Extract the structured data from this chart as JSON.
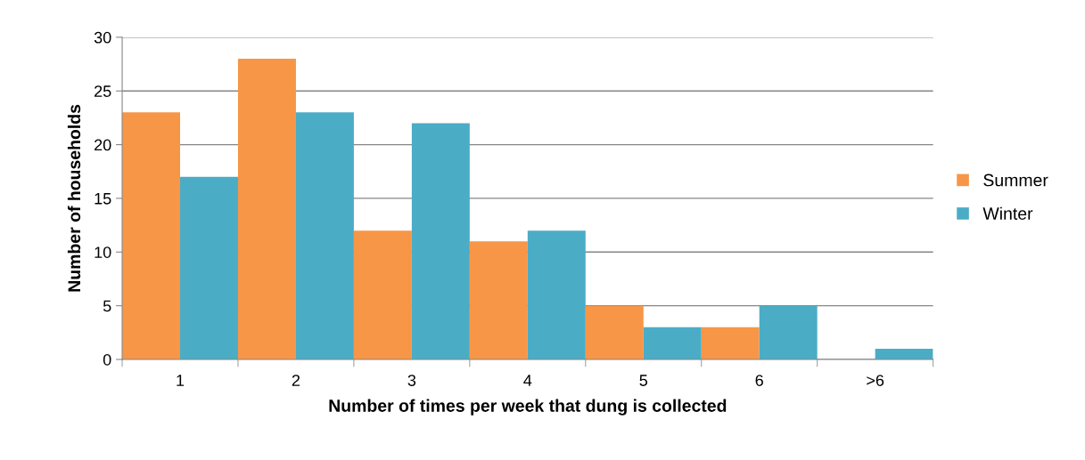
{
  "chart_data": {
    "type": "bar",
    "xlabel": "Number of times per week that dung is collected",
    "ylabel": "Number of households",
    "categories": [
      "1",
      "2",
      "3",
      "4",
      "5",
      "6",
      ">6"
    ],
    "series": [
      {
        "name": "Summer",
        "color": "#f79646",
        "values": [
          23,
          28,
          12,
          11,
          5,
          3,
          0
        ]
      },
      {
        "name": "Winter",
        "color": "#4bacc6",
        "values": [
          17,
          23,
          22,
          12,
          3,
          5,
          1
        ]
      }
    ],
    "ylim": [
      0,
      30
    ],
    "yticks": [
      0,
      5,
      10,
      15,
      20,
      25,
      30
    ],
    "grid": "y",
    "legend": "right"
  }
}
